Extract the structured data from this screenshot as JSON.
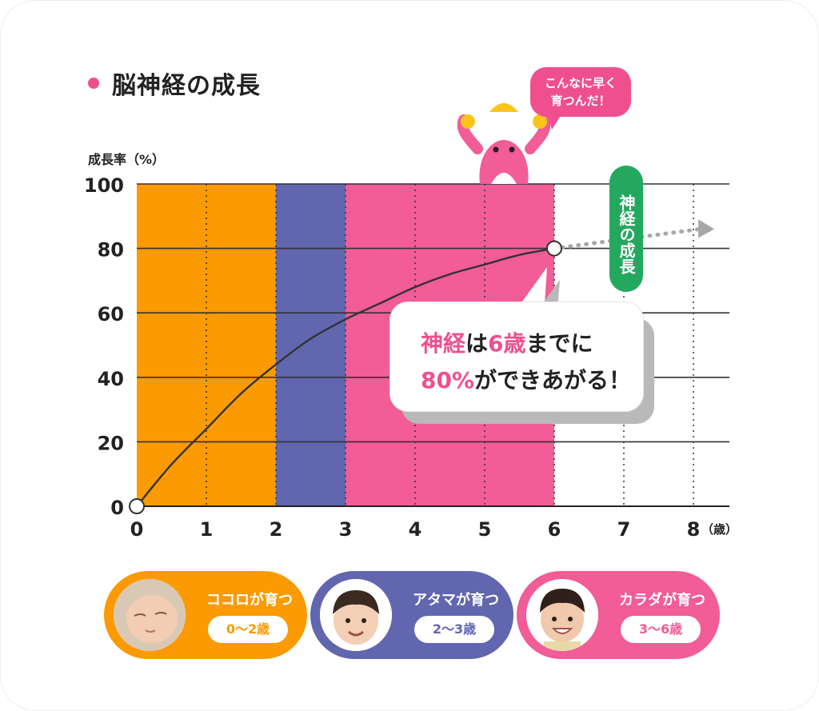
{
  "title": "脳神経の成長",
  "ylabel": "成長率（%）",
  "unit_label": "（歳）",
  "bubble_top": {
    "line1": "こんなに早く",
    "line2": "育つんだ！"
  },
  "vertical_tag": "神経の成長",
  "callout": {
    "l1_a": "神経",
    "l1_b": "は",
    "l1_c": "6歳",
    "l1_d": "までに",
    "l2_a": "80%",
    "l2_b": "ができあがる！"
  },
  "colors": {
    "orange": "#fb9a02",
    "purple": "#6166af",
    "pink": "#f25c97",
    "green": "#24a860",
    "accent": "#ef4f8f"
  },
  "chart_data": {
    "type": "line",
    "title": "脳神経の成長",
    "ylabel": "成長率（%）",
    "xlabel": "（歳）",
    "xlim": [
      0,
      8
    ],
    "ylim": [
      0,
      100
    ],
    "x_ticks": [
      "0",
      "1",
      "2",
      "3",
      "4",
      "5",
      "6",
      "7",
      "8"
    ],
    "y_ticks": [
      "0",
      "20",
      "40",
      "60",
      "80",
      "100"
    ],
    "grid": true,
    "series": [
      {
        "values": [
          {
            "x": 0,
            "y": 0
          },
          {
            "x": 0.5,
            "y": 13
          },
          {
            "x": 1,
            "y": 24
          },
          {
            "x": 1.5,
            "y": 35
          },
          {
            "x": 2,
            "y": 44
          },
          {
            "x": 2.5,
            "y": 52
          },
          {
            "x": 3,
            "y": 58
          },
          {
            "x": 3.5,
            "y": 63
          },
          {
            "x": 4,
            "y": 68
          },
          {
            "x": 4.5,
            "y": 72
          },
          {
            "x": 5,
            "y": 75
          },
          {
            "x": 5.5,
            "y": 78
          },
          {
            "x": 6,
            "y": 80
          }
        ]
      }
    ],
    "projection": [
      {
        "x": 6,
        "y": 80
      },
      {
        "x": 8.3,
        "y": 86
      }
    ],
    "bands": [
      {
        "from": 0,
        "to": 2,
        "color": "#fb9a02"
      },
      {
        "from": 2,
        "to": 3,
        "color": "#6166af"
      },
      {
        "from": 3,
        "to": 6,
        "color": "#f25c97"
      }
    ]
  },
  "stages": [
    {
      "label": "ココロが育つ",
      "range": "0〜2歳",
      "color": "#fb9a02"
    },
    {
      "label": "アタマが育つ",
      "range": "2〜3歳",
      "color": "#6166af"
    },
    {
      "label": "カラダが育つ",
      "range": "3〜6歳",
      "color": "#f25c97"
    }
  ]
}
